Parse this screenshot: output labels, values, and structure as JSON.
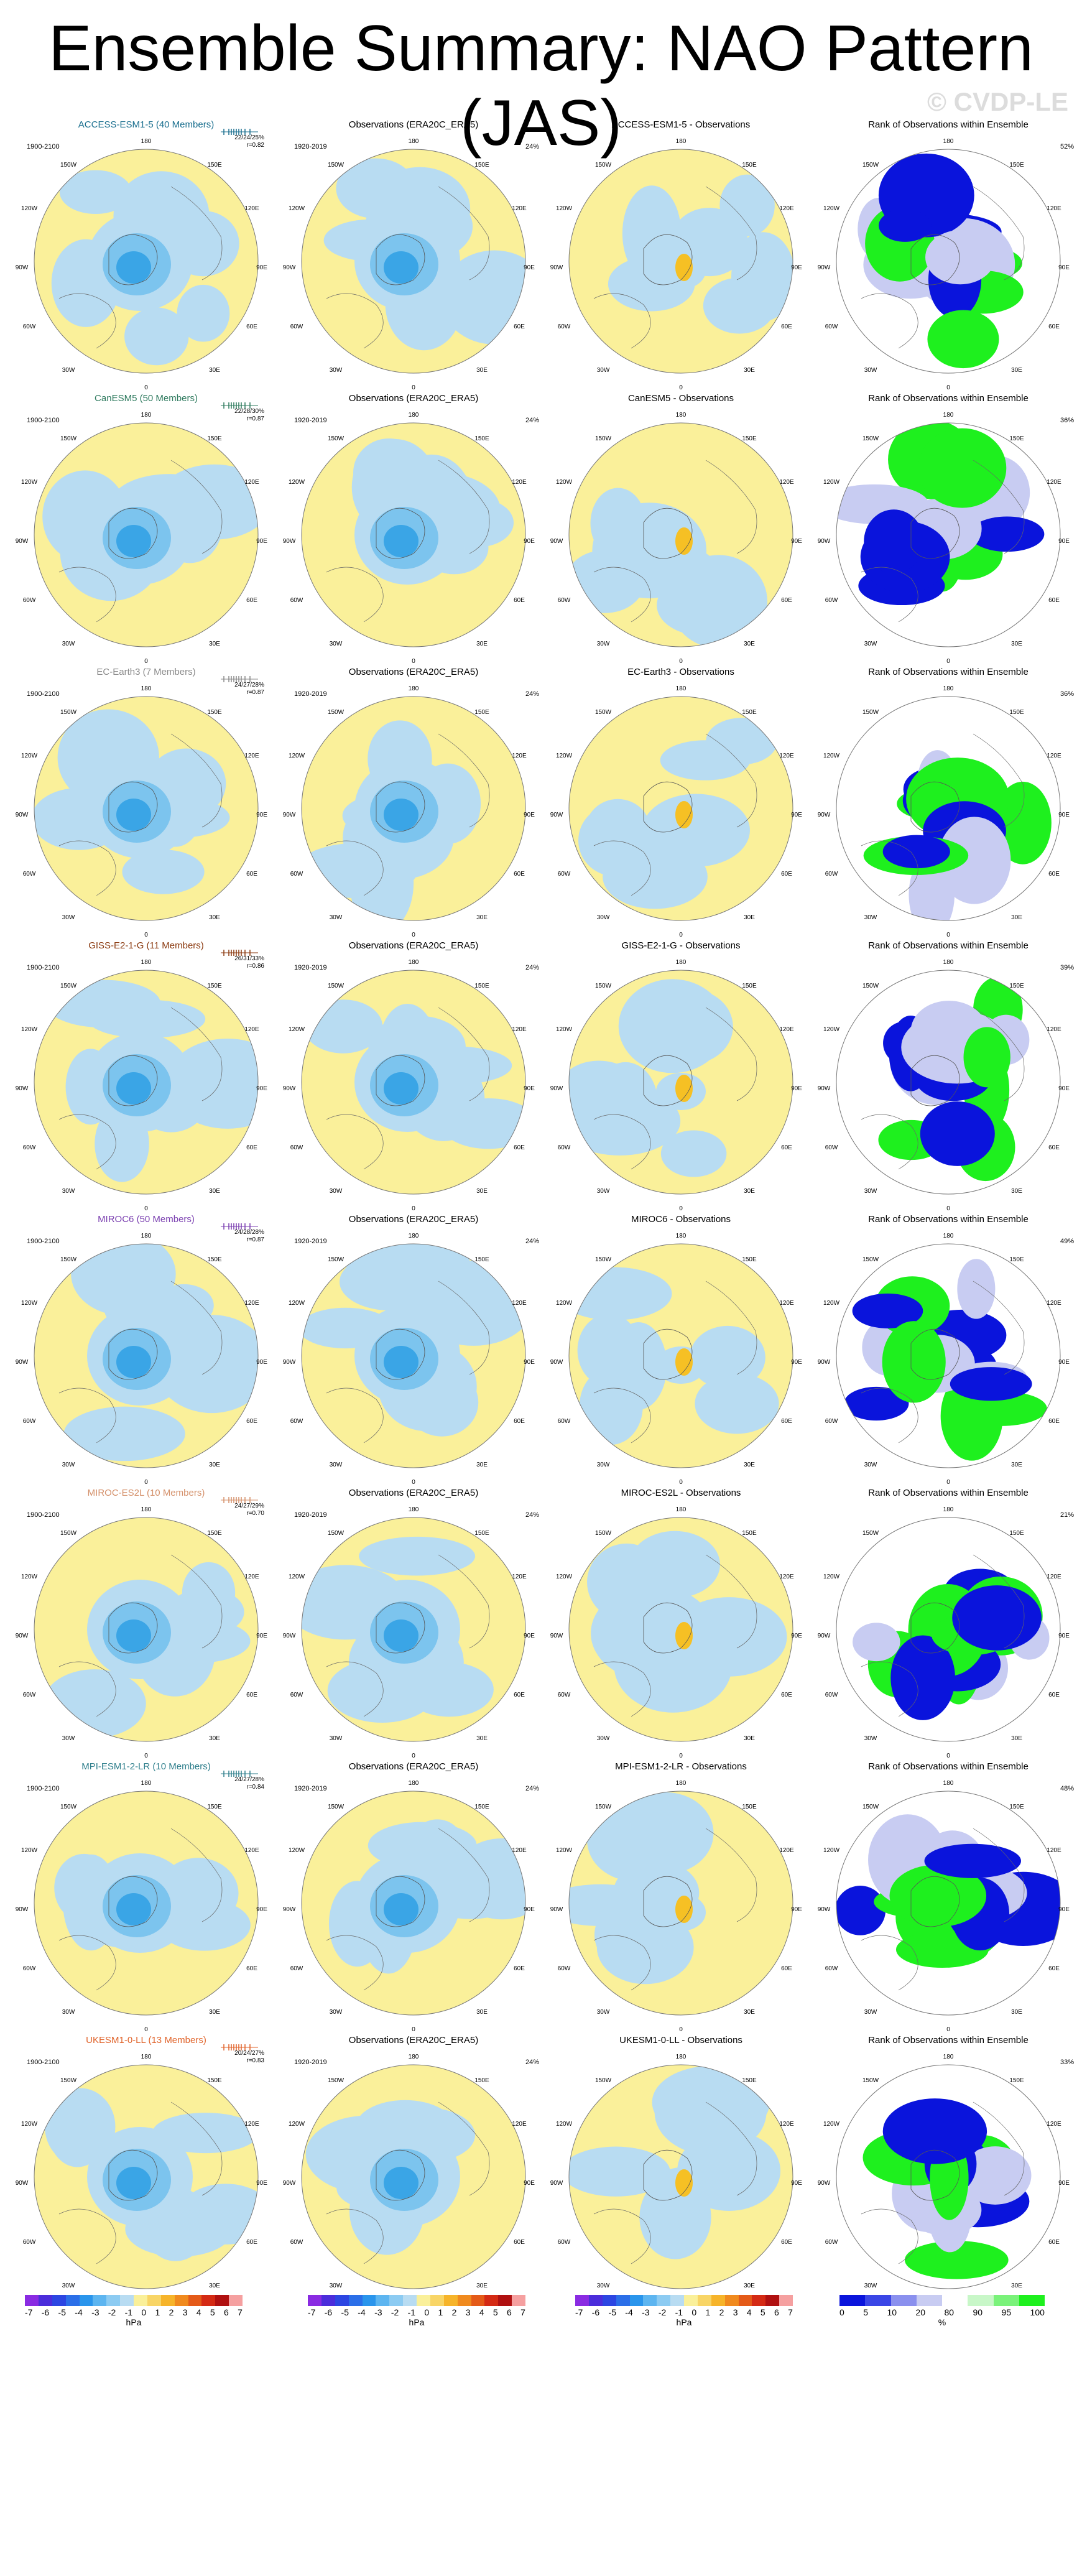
{
  "title": "Ensemble Summary: NAO Pattern (JAS)",
  "watermark": "© CVDP-LE",
  "obs_title": "Observations (ERA20C_ERA5)",
  "rank_title": "Rank of Observations within Ensemble",
  "obs_period": "1920-2019",
  "obs_pct": "24%",
  "colors": {
    "blue_light": "#b8dcf2",
    "blue_mid": "#7cc4ee",
    "blue_dark": "#3aa5e6",
    "yellow": "#faf09a",
    "orange": "#f6c024",
    "rank_blue": "#0a14dc",
    "rank_lav": "#c8ccf2",
    "rank_green": "#1ef01e"
  },
  "rows": [
    {
      "model": "ACCESS-ESM1-5 (40 Members)",
      "model_color": "#1a6f8f",
      "period": "1900-2100",
      "stats1": "22/24/25%",
      "stats2": "r=0.82",
      "diff": "ACCESS-ESM1-5 - Observations",
      "rank_pct": "52%"
    },
    {
      "model": "CanESM5 (50 Members)",
      "model_color": "#2e7a5e",
      "period": "1900-2100",
      "stats1": "22/28/30%",
      "stats2": "r=0.87",
      "diff": "CanESM5 - Observations",
      "rank_pct": "36%"
    },
    {
      "model": "EC-Earth3 (7 Members)",
      "model_color": "#8a8a8a",
      "period": "1900-2100",
      "stats1": "24/27/28%",
      "stats2": "r=0.87",
      "diff": "EC-Earth3 - Observations",
      "rank_pct": "36%"
    },
    {
      "model": "GISS-E2-1-G (11 Members)",
      "model_color": "#8b3a10",
      "period": "1900-2100",
      "stats1": "26/31/33%",
      "stats2": "r=0.86",
      "diff": "GISS-E2-1-G - Observations",
      "rank_pct": "39%"
    },
    {
      "model": "MIROC6 (50 Members)",
      "model_color": "#7a3fb0",
      "period": "1900-2100",
      "stats1": "24/28/28%",
      "stats2": "r=0.87",
      "diff": "MIROC6 - Observations",
      "rank_pct": "49%"
    },
    {
      "model": "MIROC-ES2L (10 Members)",
      "model_color": "#d4906a",
      "period": "1900-2100",
      "stats1": "24/27/29%",
      "stats2": "r=0.70",
      "diff": "MIROC-ES2L - Observations",
      "rank_pct": "21%"
    },
    {
      "model": "MPI-ESM1-2-LR (10 Members)",
      "model_color": "#2f7f8c",
      "period": "1900-2100",
      "stats1": "24/27/28%",
      "stats2": "r=0.84",
      "diff": "MPI-ESM1-2-LR - Observations",
      "rank_pct": "48%"
    },
    {
      "model": "UKESM1-0-LL (13 Members)",
      "model_color": "#e0632a",
      "period": "1900-2100",
      "stats1": "20/24/27%",
      "stats2": "r=0.83",
      "diff": "UKESM1-0-LL - Observations",
      "rank_pct": "33%"
    }
  ],
  "map_labels": {
    "top": "180",
    "bottom": "0",
    "ul": "150W",
    "ur": "150E",
    "l1": "120W",
    "r1": "120E",
    "l2": "90W",
    "r2": "90E",
    "l3": "60W",
    "r3": "60E",
    "bl": "30W",
    "br": "30E"
  },
  "colorbar_hpa": {
    "labels": [
      "-7",
      "-6",
      "-5",
      "-4",
      "-3",
      "-2",
      "-1",
      "0",
      "1",
      "2",
      "3",
      "4",
      "5",
      "6",
      "7"
    ],
    "unit": "hPa",
    "colors": [
      "#8a2be2",
      "#4b2ddb",
      "#2c46e2",
      "#2b6fe8",
      "#2a95ec",
      "#5db5f0",
      "#8ccbf2",
      "#b8dcf2",
      "#faf09a",
      "#f8d566",
      "#f6b42a",
      "#f08a1e",
      "#e45a18",
      "#d42a14",
      "#b01010",
      "#f5a0a0"
    ]
  },
  "colorbar_rank": {
    "labels": [
      "0",
      "5",
      "10",
      "20",
      "80",
      "90",
      "95",
      "100"
    ],
    "unit": "%",
    "colors": [
      "#0a14dc",
      "#3a46e6",
      "#8a90ee",
      "#c8ccf2",
      "#ffffff",
      "#c8f7c8",
      "#7af27a",
      "#1ef01e"
    ]
  }
}
